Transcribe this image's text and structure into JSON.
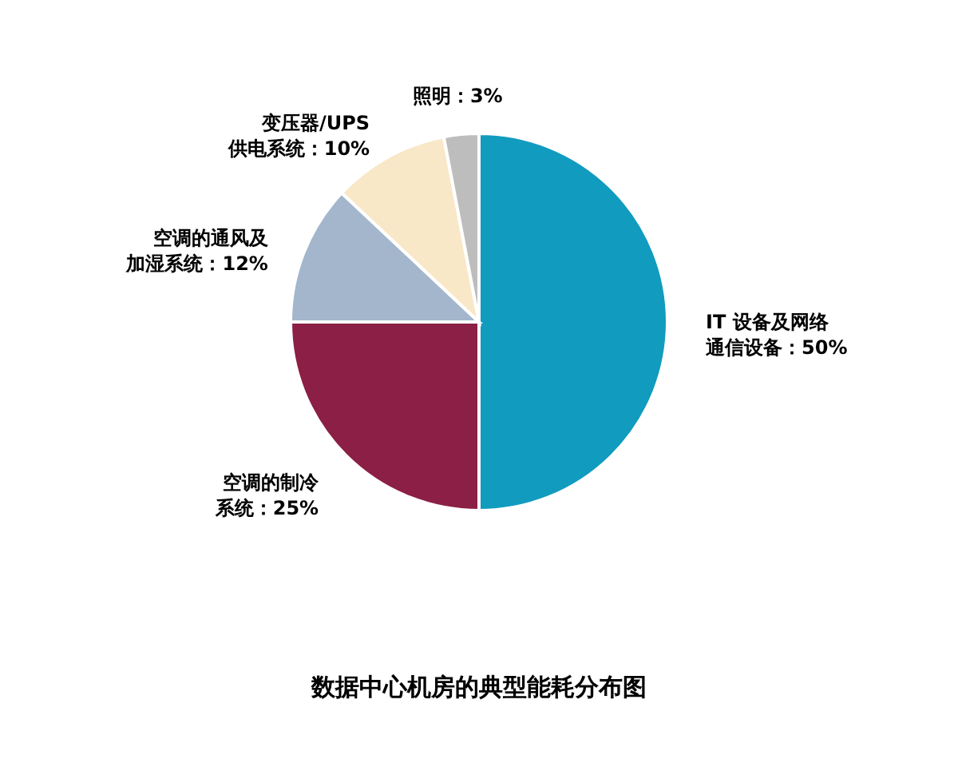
{
  "chart_data": {
    "type": "pie",
    "title": "数据中心机房的典型能耗分布图",
    "categories": [
      "IT 设备及网络通信设备：50%",
      "空调的制冷系统：25%",
      "空调的通风及加湿系统：12%",
      "变压器/UPS供电系统：10%",
      "照明：3%"
    ],
    "values": [
      50,
      25,
      12,
      10,
      3
    ],
    "colors": [
      "#119bbf",
      "#8c1f45",
      "#a3b6cc",
      "#f8e8c8",
      "#bdbdbd"
    ]
  }
}
